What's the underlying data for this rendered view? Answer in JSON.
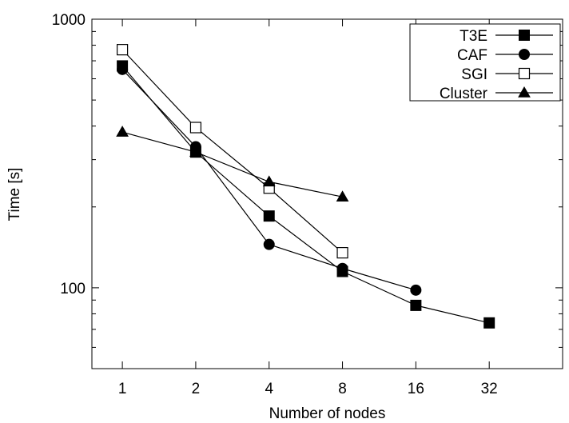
{
  "chart_data": {
    "type": "line",
    "xlabel": "Number of nodes",
    "ylabel": "Time [s]",
    "x_scale": "log2",
    "y_scale": "log10",
    "xlim": [
      0.75,
      64
    ],
    "ylim": [
      50,
      1000
    ],
    "x_ticks": [
      1,
      2,
      4,
      8,
      16,
      32
    ],
    "x_tick_labels": [
      "1",
      "2",
      "4",
      "8",
      "16",
      "32"
    ],
    "y_ticks": [
      100,
      1000
    ],
    "y_tick_labels": [
      "100",
      "1000"
    ],
    "grid": false,
    "legend_position": "top-right",
    "series": [
      {
        "name": "T3E",
        "marker": "square-filled",
        "x": [
          1,
          2,
          4,
          8,
          16,
          32
        ],
        "y": [
          670,
          320,
          185,
          115,
          86,
          74
        ]
      },
      {
        "name": "CAF",
        "marker": "circle-filled",
        "x": [
          1,
          2,
          4,
          8,
          16
        ],
        "y": [
          650,
          335,
          145,
          118,
          98
        ]
      },
      {
        "name": "SGI",
        "marker": "square-open",
        "x": [
          1,
          2,
          4,
          8
        ],
        "y": [
          770,
          395,
          235,
          135
        ]
      },
      {
        "name": "Cluster",
        "marker": "triangle-filled",
        "x": [
          1,
          2,
          4,
          8
        ],
        "y": [
          380,
          320,
          248,
          218
        ]
      }
    ]
  }
}
